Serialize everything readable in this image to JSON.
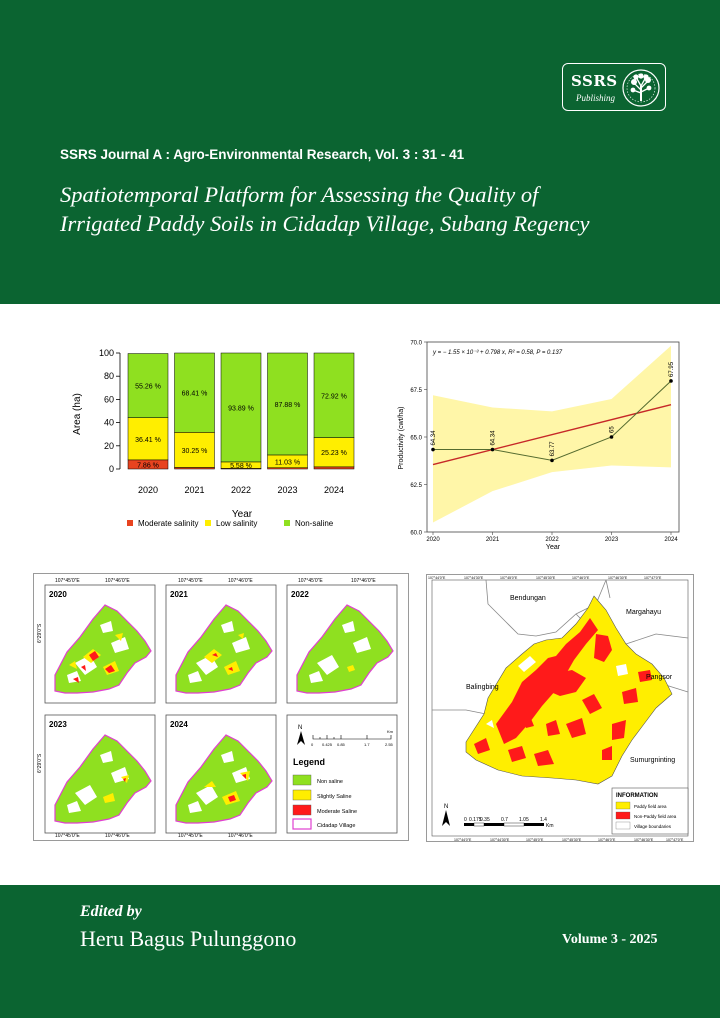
{
  "header": {
    "logo_title": "SSRS",
    "logo_subtitle": "Publishing",
    "journal_line": "SSRS Journal A : Agro-Environmental Research, Vol. 3 : 31 - 41",
    "title_line1": "Spatiotemporal Platform for Assessing the Quality of",
    "title_line2": "Irrigated Paddy Soils in Cidadap Village, Subang Regency"
  },
  "chart_data": [
    {
      "type": "bar",
      "stacked": true,
      "categories": [
        "2020",
        "2021",
        "2022",
        "2023",
        "2024"
      ],
      "series": [
        {
          "name": "Moderate salinity",
          "color": "#e8431f",
          "values": [
            7.86,
            1.34,
            0.53,
            1.09,
            1.85
          ],
          "labels": [
            "7.86 %",
            "",
            "",
            "",
            ""
          ]
        },
        {
          "name": "Low salinity",
          "color": "#ffee00",
          "values": [
            36.41,
            30.25,
            5.58,
            11.03,
            25.23
          ],
          "labels": [
            "36.41 %",
            "30.25 %",
            "5.58 %",
            "11.03 %",
            "25.23 %"
          ]
        },
        {
          "name": "Non-saline",
          "color": "#8fe020",
          "values": [
            55.26,
            68.41,
            93.89,
            87.88,
            72.92
          ],
          "labels": [
            "55.26 %",
            "68.41 %",
            "93.89 %",
            "87.88 %",
            "72.92 %"
          ]
        }
      ],
      "xlabel": "Year",
      "ylabel": "Area (ha)",
      "ylim": [
        0,
        100
      ],
      "yticks": [
        "0",
        "20",
        "40",
        "60",
        "80",
        "100"
      ],
      "legend_position": "bottom"
    },
    {
      "type": "line",
      "x": [
        "2020",
        "2021",
        "2022",
        "2023",
        "2024"
      ],
      "values": [
        64.34,
        64.34,
        63.77,
        65,
        67.95
      ],
      "point_labels": [
        "64.34",
        "64.34",
        "63.77",
        "65",
        "67.95"
      ],
      "trend": {
        "start": 63.55,
        "end": 66.7
      },
      "band_upper": [
        67.2,
        66.55,
        66.35,
        67.0,
        69.8
      ],
      "band_lower": [
        60.5,
        62.15,
        63.15,
        63.5,
        63.4
      ],
      "equation": "y = − 1.55 × 10⁻³ + 0.798 x, R² = 0.58, P = 0.137",
      "xlabel": "Year",
      "ylabel": "Productivity (cwt/ha)",
      "ylim": [
        60.0,
        70.0
      ],
      "yticks": [
        "60.0",
        "62.5",
        "65.0",
        "67.5",
        "70.0"
      ]
    }
  ],
  "salinity_maps": {
    "panels": [
      "2020",
      "2021",
      "2022",
      "2023",
      "2024"
    ],
    "coord_top": [
      "107°45'0\"E",
      "107°46'0\"E",
      "107°45'0\"E",
      "107°46'0\"E",
      "107°45'0\"E",
      "107°46'0\"E"
    ],
    "coord_bottom": [
      "107°45'0\"E",
      "107°46'0\"E",
      "107°45'0\"E",
      "107°46'0\"E"
    ],
    "coord_left": "6°29'0\"S",
    "scale_ticks": [
      "0",
      "0.425",
      "0.85",
      "1.7",
      "2.55"
    ],
    "scale_unit": "Km",
    "legend_title": "Legend",
    "legend_items": [
      {
        "label": "Non saline",
        "color": "#8fe020"
      },
      {
        "label": "Slightly Saline",
        "color": "#ffee00"
      },
      {
        "label": "Moderate Saline",
        "color": "#ff1a1a"
      },
      {
        "label": "Cidadap Village",
        "color": "#e040d0"
      }
    ]
  },
  "paddy_map": {
    "villages": [
      "Bendungan",
      "Margahayu",
      "Pangsor",
      "Balingbing",
      "Sumurgninting"
    ],
    "info_title": "INFORMATION",
    "info_items": [
      {
        "label": "Paddy field area",
        "color": "#ffee00"
      },
      {
        "label": "Non-Paddy field area",
        "color": "#ff1a1a"
      },
      {
        "label": "Village boundaries",
        "color": "#ffffff"
      }
    ],
    "scale_ticks": [
      "0",
      "0.175",
      "0.35",
      "0.7",
      "1.05",
      "1.4"
    ],
    "scale_unit": "Km",
    "coord_top": [
      "107°44'0\"E",
      "107°44'30\"E",
      "107°45'0\"E",
      "107°45'30\"E",
      "107°46'0\"E",
      "107°46'30\"E",
      "107°47'0\"E"
    ],
    "coord_bottom": [
      "107°44'0\"E",
      "107°44'30\"E",
      "107°45'0\"E",
      "107°45'30\"E",
      "107°46'0\"E",
      "107°46'30\"E",
      "107°47'0\"E"
    ]
  },
  "footer": {
    "edited_by": "Edited by",
    "editor": "Heru Bagus Pulunggono",
    "volume": "Volume 3 - 2025"
  }
}
